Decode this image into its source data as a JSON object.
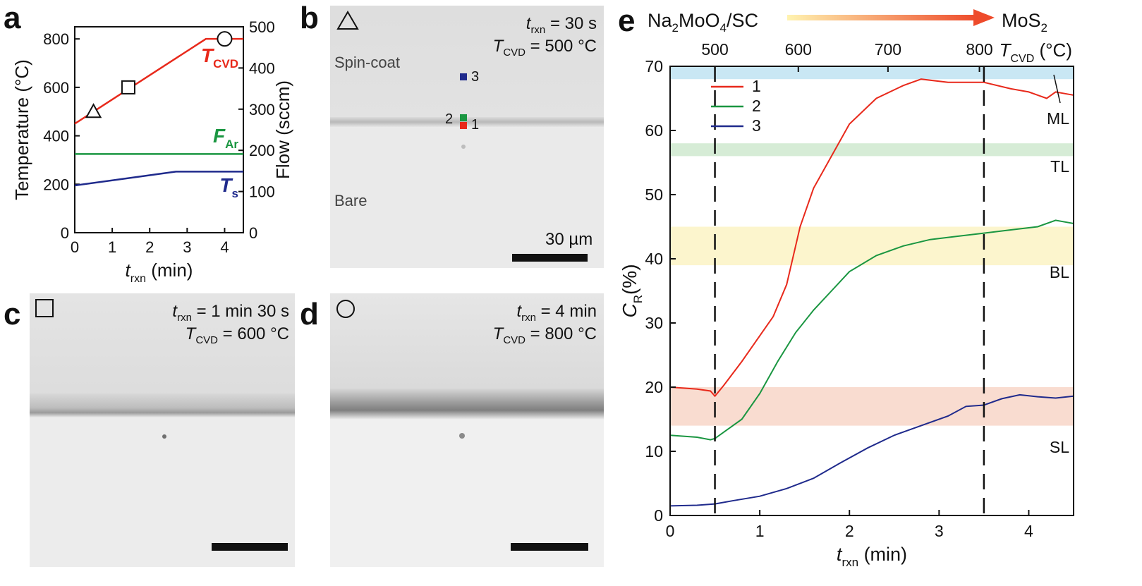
{
  "panels": {
    "a": {
      "label": "a",
      "chart_data": {
        "type": "line",
        "xlabel_main": "t",
        "xlabel_sub": "rxn",
        "xlabel_unit": " (min)",
        "ylabel": "Temperature (°C)",
        "ylabel_right": "Flow (sccm)",
        "xlim": [
          0,
          4.5
        ],
        "ylim": [
          0,
          850
        ],
        "ylim_right": [
          0,
          500
        ],
        "xticks": [
          0,
          1,
          2,
          3,
          4
        ],
        "yticks": [
          0,
          200,
          400,
          600,
          800
        ],
        "yticks_right": [
          0,
          100,
          200,
          300,
          400,
          500
        ],
        "series": [
          {
            "name_main": "T",
            "name_sub": "CVD",
            "color": "#e8291b",
            "axis": "left",
            "x": [
              0,
              3.5,
              4.5
            ],
            "y": [
              450,
              800,
              800
            ]
          },
          {
            "name_main": "F",
            "name_sub": "Ar",
            "color": "#1a9641",
            "axis": "left",
            "x": [
              0,
              4.5
            ],
            "y": [
              325,
              325
            ]
          },
          {
            "name_main": "T",
            "name_sub": "s",
            "color": "#1f2a8c",
            "axis": "left",
            "x": [
              0,
              2.7,
              4.5
            ],
            "y": [
              195,
              252,
              252
            ]
          }
        ],
        "markers": [
          {
            "shape": "triangle",
            "x": 0.5,
            "y": 500
          },
          {
            "shape": "square",
            "x": 1.43,
            "y": 600
          },
          {
            "shape": "circle",
            "x": 4.0,
            "y": 800
          }
        ]
      }
    },
    "b": {
      "label": "b",
      "symbol": "triangle",
      "t_main": "t",
      "t_sub": "rxn",
      "t_value": " = 30 s",
      "T_main": "T",
      "T_sub": "CVD",
      "T_value": " = 500 °C",
      "region_top": "Spin-coat",
      "region_bottom": "Bare",
      "scalebar": "30 µm",
      "points": [
        {
          "label": "3",
          "color": "#1f2a8c"
        },
        {
          "label": "2",
          "color": "#1a9641"
        },
        {
          "label": "1",
          "color": "#e8291b"
        }
      ]
    },
    "c": {
      "label": "c",
      "symbol": "square",
      "t_main": "t",
      "t_sub": "rxn",
      "t_value": " = 1 min 30 s",
      "T_main": "T",
      "T_sub": "CVD",
      "T_value": " = 600 °C"
    },
    "d": {
      "label": "d",
      "symbol": "circle",
      "t_main": "t",
      "t_sub": "rxn",
      "t_value": " = 4 min",
      "T_main": "T",
      "T_sub": "CVD",
      "T_value": " = 800 °C"
    },
    "e": {
      "label": "e",
      "arrow_start": "Na2MoO4/SC",
      "arrow_end": "MoS2",
      "chart_data": {
        "type": "line",
        "xlabel_main": "t",
        "xlabel_sub": "rxn",
        "xlabel_unit": " (min)",
        "ylabel_main": "C",
        "ylabel_sub": "R",
        "ylabel_unit": "(%)",
        "top_axis_main": "T",
        "top_axis_sub": "CVD",
        "top_axis_unit": " (°C)",
        "xlim": [
          0,
          4.5
        ],
        "ylim": [
          0,
          70
        ],
        "xticks": [
          0,
          1,
          2,
          3,
          4
        ],
        "yticks": [
          0,
          10,
          20,
          30,
          40,
          50,
          60,
          70
        ],
        "top_ticks": [
          {
            "label": "500",
            "x": 0.5
          },
          {
            "label": "600",
            "x": 1.43
          },
          {
            "label": "700",
            "x": 2.43
          },
          {
            "label": "800",
            "x": 3.45
          }
        ],
        "vlines": [
          0.5,
          3.5
        ],
        "bands": [
          {
            "name": "ML",
            "y": [
              68,
              70
            ],
            "color": "#bfe3f2"
          },
          {
            "name": "TL",
            "y": [
              56,
              58
            ],
            "color": "#cfe9cf"
          },
          {
            "name": "BL",
            "y": [
              39,
              45
            ],
            "color": "#fbf3c4"
          },
          {
            "name": "SL",
            "y": [
              14,
              20
            ],
            "color": "#f8d6c8"
          }
        ],
        "series": [
          {
            "name": "1",
            "color": "#e8291b",
            "x": [
              0,
              0.3,
              0.45,
              0.5,
              0.6,
              0.8,
              1.0,
              1.15,
              1.3,
              1.45,
              1.6,
              1.8,
              2.0,
              2.3,
              2.6,
              2.8,
              3.1,
              3.5,
              3.8,
              4.0,
              4.1,
              4.2,
              4.3,
              4.5
            ],
            "y": [
              20,
              19.7,
              19.4,
              18.6,
              20.3,
              24,
              28,
              31,
              36,
              45,
              51,
              56,
              61,
              65,
              67,
              68,
              67.5,
              67.5,
              66.5,
              66,
              65.5,
              65,
              66,
              65.5
            ]
          },
          {
            "name": "2",
            "color": "#1a9641",
            "x": [
              0,
              0.3,
              0.45,
              0.5,
              0.6,
              0.8,
              1.0,
              1.2,
              1.4,
              1.6,
              1.8,
              2.0,
              2.3,
              2.6,
              2.9,
              3.2,
              3.5,
              3.8,
              4.1,
              4.3,
              4.5
            ],
            "y": [
              12.5,
              12.2,
              11.8,
              12,
              13,
              15,
              19,
              24,
              28.5,
              32,
              35,
              38,
              40.5,
              42,
              43,
              43.5,
              44,
              44.5,
              45,
              46,
              45.5
            ]
          },
          {
            "name": "3",
            "color": "#1f2a8c",
            "x": [
              0,
              0.3,
              0.5,
              0.7,
              1.0,
              1.3,
              1.6,
              1.9,
              2.2,
              2.5,
              2.8,
              3.1,
              3.3,
              3.5,
              3.7,
              3.9,
              4.1,
              4.3,
              4.5
            ],
            "y": [
              1.5,
              1.6,
              1.8,
              2.3,
              3,
              4.2,
              5.8,
              8.2,
              10.5,
              12.5,
              14,
              15.5,
              17,
              17.2,
              18.2,
              18.8,
              18.5,
              18.3,
              18.6
            ]
          }
        ]
      }
    }
  }
}
